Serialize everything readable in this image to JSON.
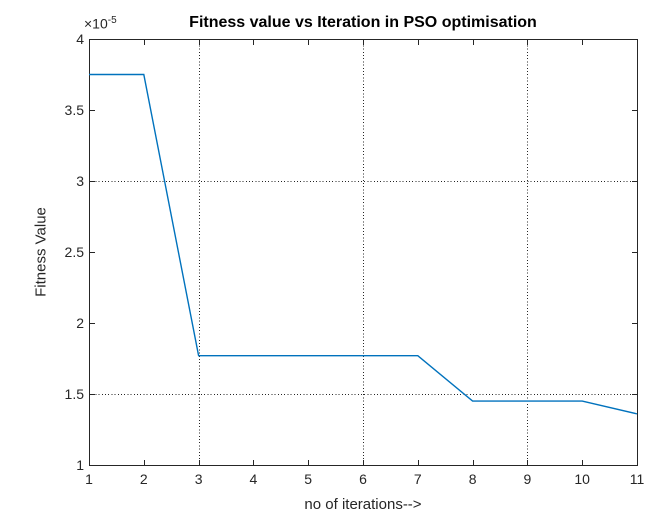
{
  "chart_data": {
    "type": "line",
    "title": "Fitness value vs Iteration in PSO optimisation",
    "xlabel": "no of iterations-->",
    "ylabel": "Fitness Value",
    "y_axis_multiplier": {
      "base": "×10",
      "exponent": "-5"
    },
    "x": [
      1,
      2,
      3,
      4,
      5,
      6,
      7,
      8,
      9,
      10,
      11
    ],
    "series": [
      {
        "name": "fitness-value",
        "values": [
          3.75,
          3.75,
          1.77,
          1.77,
          1.77,
          1.77,
          1.77,
          1.45,
          1.45,
          1.45,
          1.36
        ],
        "color": "#0072BD"
      }
    ],
    "value_multiplier": 1e-05,
    "xlim": [
      1,
      11
    ],
    "ylim": [
      1,
      4
    ],
    "x_tick_values": [
      1,
      2,
      3,
      4,
      5,
      6,
      7,
      8,
      9,
      10,
      11
    ],
    "x_tick_labels": [
      "1",
      "2",
      "3",
      "4",
      "5",
      "6",
      "7",
      "8",
      "9",
      "10",
      "11"
    ],
    "y_tick_values": [
      1,
      1.5,
      2,
      2.5,
      3,
      3.5,
      4
    ],
    "y_tick_labels": [
      "1",
      "1.5",
      "2",
      "2.5",
      "3",
      "3.5",
      "4"
    ],
    "x_gridlines": [
      3,
      6,
      9
    ],
    "y_gridlines": [
      1.5,
      3
    ],
    "grid_style": "dotted",
    "legend": "none",
    "line_color": "#0072BD",
    "axis_color": "#262626",
    "title_color": "#000000",
    "background_color": "#ffffff"
  }
}
